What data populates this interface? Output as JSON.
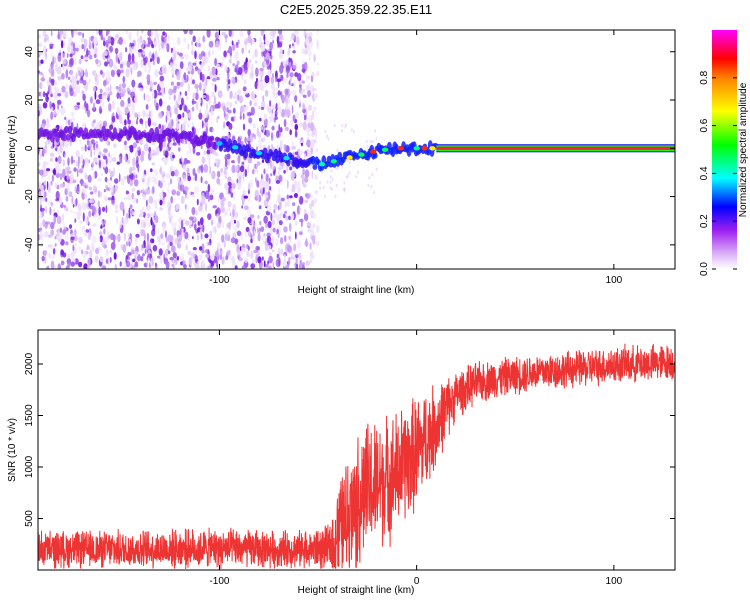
{
  "title": "C2E5.2025.359.22.35.E11",
  "chart_data": [
    {
      "type": "heatmap",
      "title": "C2E5.2025.359.22.35.E11",
      "xlabel": "Height of straight line (km)",
      "ylabel": "Frequency (Hz)",
      "xlim": [
        -192,
        131
      ],
      "ylim": [
        -50,
        49
      ],
      "xticks": [
        -100,
        0,
        100
      ],
      "xtick_labels": [
        "-100",
        "",
        "100"
      ],
      "yticks": [
        -40,
        -20,
        0,
        20,
        40
      ],
      "ytick_labels": [
        "-40",
        "-20",
        "0",
        "20",
        "40"
      ],
      "noise_region_x": [
        -192,
        -50
      ],
      "signal_track": {
        "x": [
          -192,
          -150,
          -120,
          -100,
          -80,
          -60,
          -50,
          -40,
          -30,
          -20,
          -10,
          0,
          10,
          131
        ],
        "freq": [
          6,
          6,
          5,
          2,
          -2,
          -5,
          -7,
          -5,
          -3,
          -1,
          0,
          0,
          0,
          0
        ]
      },
      "steady_line": {
        "x_start": 10,
        "x_end": 131,
        "freq": 0
      },
      "colorbar": {
        "label": "Normalized spectral amplitude",
        "range": [
          0.0,
          1.0
        ],
        "ticks": [
          0.0,
          0.2,
          0.4,
          0.6,
          0.8
        ],
        "tick_labels": [
          "0.0",
          "0.2",
          "0.4",
          "0.6",
          "0.8"
        ],
        "colors": [
          "#ffffff",
          "#a020f0",
          "#0000ff",
          "#00ffff",
          "#00ff00",
          "#ffff00",
          "#ff0000",
          "#ff00ff"
        ]
      }
    },
    {
      "type": "line",
      "xlabel": "Height of straight line (km)",
      "ylabel": "SNR (10 * v/v)",
      "xlim": [
        -192,
        131
      ],
      "ylim": [
        0,
        2330
      ],
      "xticks": [
        -100,
        0,
        100
      ],
      "xtick_labels": [
        "-100",
        "0",
        "100"
      ],
      "yticks": [
        500,
        1000,
        1500,
        2000
      ],
      "ytick_labels": [
        "500",
        "1000",
        "1500",
        "2000"
      ],
      "color": "#ee3333",
      "series": [
        {
          "name": "SNR",
          "x": [
            -192,
            -150,
            -100,
            -60,
            -45,
            -40,
            -35,
            -30,
            -25,
            -20,
            -15,
            -10,
            -5,
            0,
            5,
            10,
            15,
            20,
            30,
            40,
            60,
            80,
            100,
            131
          ],
          "mean": [
            200,
            200,
            210,
            200,
            210,
            380,
            520,
            650,
            780,
            820,
            880,
            950,
            1050,
            1150,
            1280,
            1400,
            1560,
            1700,
            1810,
            1860,
            1920,
            1950,
            1990,
            2020
          ],
          "spread": [
            170,
            170,
            180,
            170,
            200,
            420,
            560,
            620,
            620,
            600,
            580,
            560,
            540,
            520,
            450,
            380,
            300,
            220,
            190,
            180,
            170,
            170,
            170,
            170
          ]
        }
      ]
    }
  ]
}
